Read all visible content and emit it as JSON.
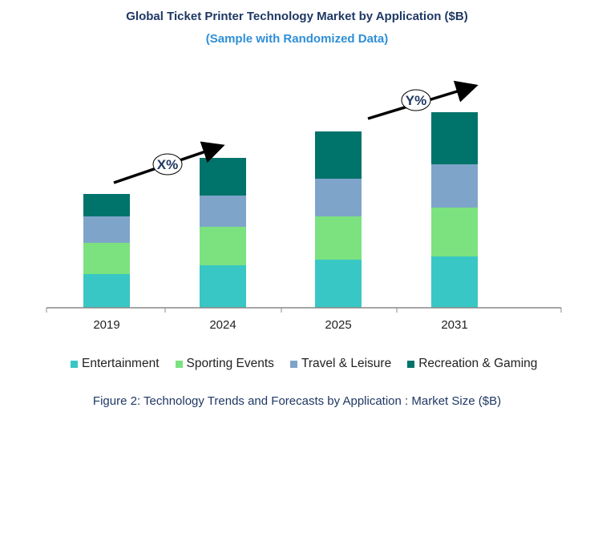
{
  "chart_data": {
    "type": "bar",
    "stacked": true,
    "title": "Global Ticket Printer Technology Market by Application ($B)",
    "subtitle": "(Sample with Randomized Data)",
    "caption": "Figure 2: Technology  Trends  and Forecasts by Application : Market Size ($B)",
    "categories": [
      "2019",
      "2024",
      "2025",
      "2031"
    ],
    "series": [
      {
        "name": "Entertainment",
        "color": "#38c7c4",
        "values": [
          4.2,
          5.3,
          6.0,
          6.4
        ]
      },
      {
        "name": "Sporting Events",
        "color": "#7be27f",
        "values": [
          3.9,
          4.8,
          5.4,
          6.1
        ]
      },
      {
        "name": "Travel & Leisure",
        "color": "#7fa4c9",
        "values": [
          3.3,
          3.9,
          4.7,
          5.4
        ]
      },
      {
        "name": "Recreation & Gaming",
        "color": "#00736a",
        "values": [
          2.8,
          4.7,
          5.9,
          6.5
        ]
      }
    ],
    "ylim": [
      0,
      25
    ],
    "grid": false,
    "legend": "bottom",
    "annotations": [
      "X%",
      "Y%"
    ]
  }
}
